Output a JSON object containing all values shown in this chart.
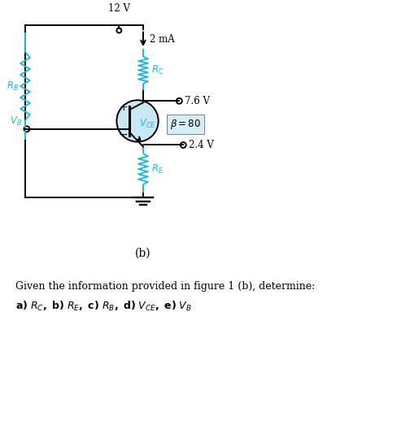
{
  "bg_color": "#ffffff",
  "circuit_color": "#000000",
  "cyan_color": "#29b6d4",
  "light_blue_fill": "#c8e8f5",
  "vcc_label": "12 V",
  "current_label": "2 mA",
  "rc_label": "$R_C$",
  "re_label": "$R_E$",
  "rb_label": "$R_B$",
  "vce_label": "$V_{CE}$",
  "vb_label": "$V_B$",
  "beta_label": "$\\beta = 80$",
  "v76_label": "7.6 V",
  "v24_label": "2.4 V",
  "fig_label": "(b)",
  "question_line1": "Given the information provided in figure 1 (b), determine:",
  "q2_prefix": "a) ",
  "q2_rc": "R_C",
  "q2_mid": ", b) ",
  "q2_re": "R_E",
  "q2_c": ", c) ",
  "q2_rb": "R_B",
  "q2_d": ", d) ",
  "q2_vce": "V_{CE}",
  "q2_e": ", e) ",
  "q2_vb": "V_B",
  "figW": 4.88,
  "figH": 5.28,
  "dpi": 100
}
